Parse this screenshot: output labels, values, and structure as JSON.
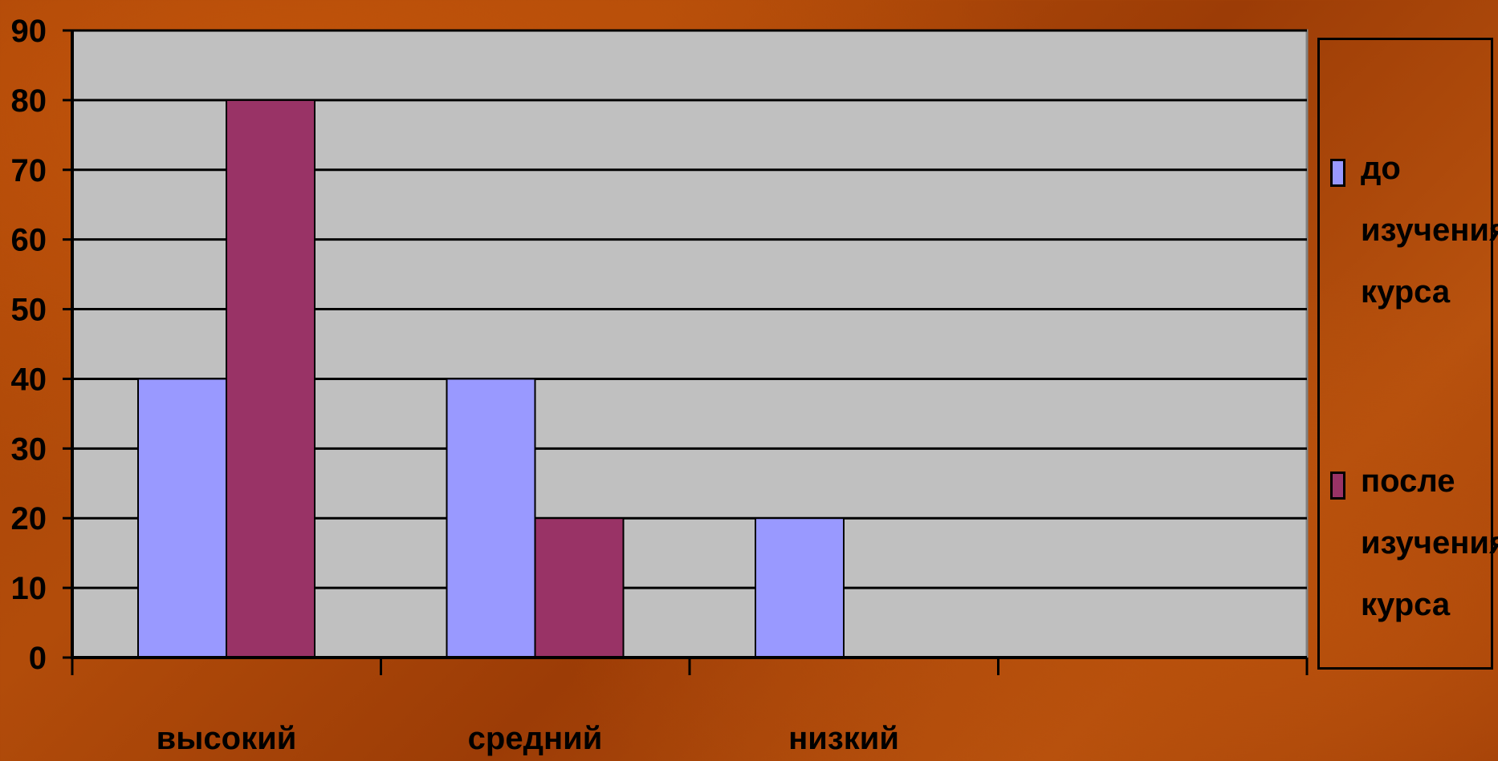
{
  "chart_data": {
    "type": "bar",
    "categories": [
      "высокий",
      "средний",
      "низкий",
      ""
    ],
    "series": [
      {
        "name": "до изучения курса",
        "color": "#9999ff",
        "values": [
          40,
          40,
          20,
          0
        ]
      },
      {
        "name": "после изучения курса",
        "color": "#993366",
        "values": [
          80,
          20,
          0,
          0
        ]
      }
    ],
    "ylim": [
      0,
      90
    ],
    "yticks": [
      "0",
      "10",
      "20",
      "30",
      "40",
      "50",
      "60",
      "70",
      "80",
      "90"
    ],
    "grid": true,
    "legend": "right",
    "plot_background": "#c0c0c0"
  }
}
